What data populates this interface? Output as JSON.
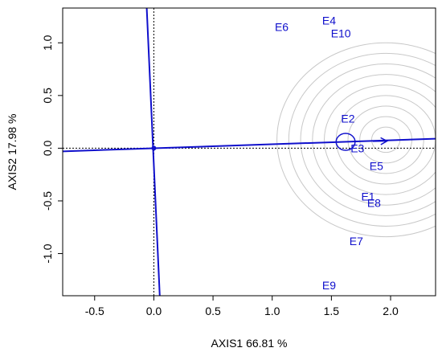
{
  "chart_data": {
    "type": "scatter",
    "title": "",
    "xlabel": "AXIS1 66.81 %",
    "ylabel": "AXIS2 17.98 %",
    "xlim": [
      -0.77,
      2.38
    ],
    "ylim": [
      -1.4,
      1.33
    ],
    "x_ticks": [
      -0.5,
      0.0,
      0.5,
      1.0,
      1.5,
      2.0
    ],
    "y_ticks": [
      -1.0,
      -0.5,
      0.0,
      0.5,
      1.0
    ],
    "x_tick_labels": [
      "-0.5",
      "0.0",
      "0.5",
      "1.0",
      "1.5",
      "2.0"
    ],
    "y_tick_labels": [
      "-1.0",
      "-0.5",
      "0.0",
      "0.5",
      "1.0"
    ],
    "grid": false,
    "point_color": "#1010cc",
    "line_color": "#1010cc",
    "circle_color": "#c8c8c8",
    "points": [
      {
        "label": "E1",
        "x": 1.81,
        "y": -0.46
      },
      {
        "label": "E2",
        "x": 1.64,
        "y": 0.28
      },
      {
        "label": "E3",
        "x": 1.72,
        "y": 0.0
      },
      {
        "label": "E4",
        "x": 1.48,
        "y": 1.21
      },
      {
        "label": "E5",
        "x": 1.88,
        "y": -0.17
      },
      {
        "label": "E6",
        "x": 1.08,
        "y": 1.15
      },
      {
        "label": "E7",
        "x": 1.71,
        "y": -0.88
      },
      {
        "label": "E8",
        "x": 1.86,
        "y": -0.52
      },
      {
        "label": "E9",
        "x": 1.48,
        "y": -1.3
      },
      {
        "label": "E10",
        "x": 1.58,
        "y": 1.09
      }
    ],
    "average_environment_axis": {
      "from": [
        -0.77,
        -0.03
      ],
      "to": [
        2.38,
        0.09
      ]
    },
    "perpendicular_axis": {
      "from": [
        -0.06,
        1.33
      ],
      "to": [
        0.05,
        -1.4
      ]
    },
    "arrow": {
      "from": [
        1.85,
        0.065
      ],
      "to": [
        1.97,
        0.068
      ]
    },
    "average_environment_marker": {
      "x": 1.62,
      "y": 0.06,
      "r": 0.08
    },
    "ideal_point": {
      "x": 1.96,
      "y": 0.08
    },
    "concentric_radii": [
      0.12,
      0.22,
      0.32,
      0.42,
      0.52,
      0.62,
      0.72,
      0.82,
      0.92
    ]
  }
}
